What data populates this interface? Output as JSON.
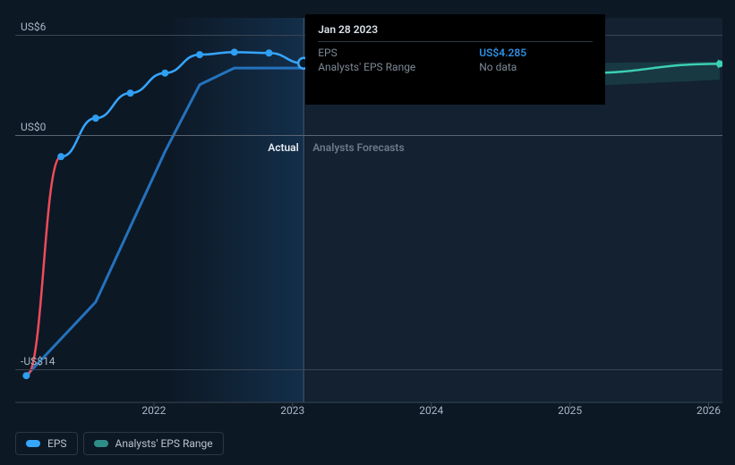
{
  "chart": {
    "type": "line",
    "background_color": "#0d1825",
    "forecast_bg_color": "#132130",
    "grid_color": "#3a4654",
    "y": {
      "min": -16,
      "max": 7,
      "ticks": [
        {
          "v": 6,
          "label": "US$6"
        },
        {
          "v": 0,
          "label": "US$0"
        },
        {
          "v": -14,
          "label": "-US$14"
        }
      ]
    },
    "x": {
      "min": 2021.0,
      "max": 2026.1,
      "ticks": [
        {
          "v": 2022,
          "label": "2022"
        },
        {
          "v": 2023,
          "label": "2023"
        },
        {
          "v": 2024,
          "label": "2024"
        },
        {
          "v": 2025,
          "label": "2025"
        },
        {
          "v": 2026,
          "label": "2026"
        }
      ]
    },
    "hover_x": 2023.08,
    "regions": {
      "actual": {
        "label": "Actual",
        "end_x": 2023.08
      },
      "forecast": {
        "label": "Analysts Forecasts",
        "start_x": 2023.08
      }
    },
    "series": {
      "eps": {
        "color_blue": "#36a6ff",
        "color_red": "#f04b5a",
        "width": 2.5,
        "marker_r": 4,
        "points": [
          {
            "x": 2021.08,
            "y": -14.4,
            "seg": "red"
          },
          {
            "x": 2021.33,
            "y": -1.3,
            "seg": "red"
          },
          {
            "x": 2021.58,
            "y": 1.0,
            "seg": "blue"
          },
          {
            "x": 2021.83,
            "y": 2.5,
            "seg": "blue"
          },
          {
            "x": 2022.08,
            "y": 3.7,
            "seg": "blue"
          },
          {
            "x": 2022.33,
            "y": 4.8,
            "seg": "blue"
          },
          {
            "x": 2022.58,
            "y": 4.95,
            "seg": "blue"
          },
          {
            "x": 2022.83,
            "y": 4.9,
            "seg": "blue"
          },
          {
            "x": 2023.08,
            "y": 4.285,
            "seg": "blue",
            "hover": true
          }
        ]
      },
      "range_line": {
        "color": "#2472bd",
        "width": 3,
        "points": [
          {
            "x": 2021.08,
            "y": -14.4
          },
          {
            "x": 2021.58,
            "y": -10.0
          },
          {
            "x": 2022.08,
            "y": -1.0
          },
          {
            "x": 2022.33,
            "y": 3.0
          },
          {
            "x": 2022.58,
            "y": 4.0
          },
          {
            "x": 2023.08,
            "y": 4.0
          }
        ]
      },
      "forecast": {
        "color": "#3ccfb4",
        "width": 2.5,
        "marker_r": 4,
        "band_fill": "#3ccfb4",
        "band_opacity": 0.14,
        "points": [
          {
            "x": 2023.08,
            "y": 4.285,
            "lo": 4.285,
            "hi": 4.285
          },
          {
            "x": 2024.08,
            "y": 3.6,
            "lo": 3.3,
            "hi": 3.9
          },
          {
            "x": 2025.08,
            "y": 3.7,
            "lo": 2.9,
            "hi": 4.3
          },
          {
            "x": 2026.08,
            "y": 4.25,
            "lo": 3.3,
            "hi": 4.4
          }
        ]
      }
    }
  },
  "tooltip": {
    "date": "Jan 28 2023",
    "rows": [
      {
        "k": "EPS",
        "v": "US$4.285",
        "hl": true
      },
      {
        "k": "Analysts' EPS Range",
        "v": "No data",
        "hl": false
      }
    ]
  },
  "legend": [
    {
      "label": "EPS",
      "color": "#36a6ff"
    },
    {
      "label": "Analysts' EPS Range",
      "color": "#2f8d88"
    }
  ]
}
